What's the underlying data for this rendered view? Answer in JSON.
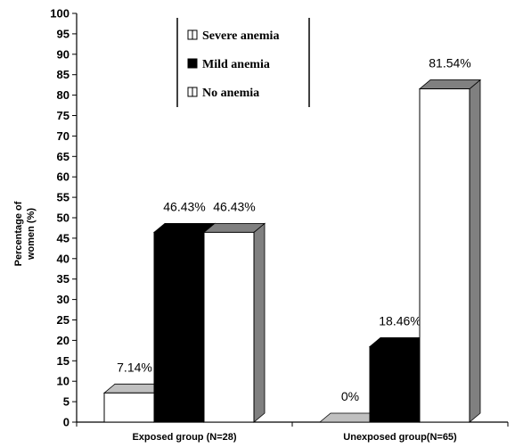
{
  "chart_data": {
    "type": "bar",
    "title": "",
    "ylabel_lines": [
      "Percentage of",
      "women (%)"
    ],
    "xlabel": "",
    "ylim": [
      0,
      100
    ],
    "ytick_step": 5,
    "grid": false,
    "legend_position": "top-center",
    "categories": [
      "Exposed group (N=28)",
      "Unexposed group(N=65)"
    ],
    "series": [
      {
        "name": "Severe anemia",
        "values": [
          7.14,
          0
        ],
        "labels": [
          "7.14%",
          "0%"
        ],
        "color": "#ffffff"
      },
      {
        "name": "Mild anemia",
        "values": [
          46.43,
          18.46
        ],
        "labels": [
          "46.43%",
          "18.46%"
        ],
        "color": "#000000"
      },
      {
        "name": "No anemia",
        "values": [
          46.43,
          81.54
        ],
        "labels": [
          "46.43%",
          "81.54%"
        ],
        "color": "#ffffff"
      }
    ]
  }
}
